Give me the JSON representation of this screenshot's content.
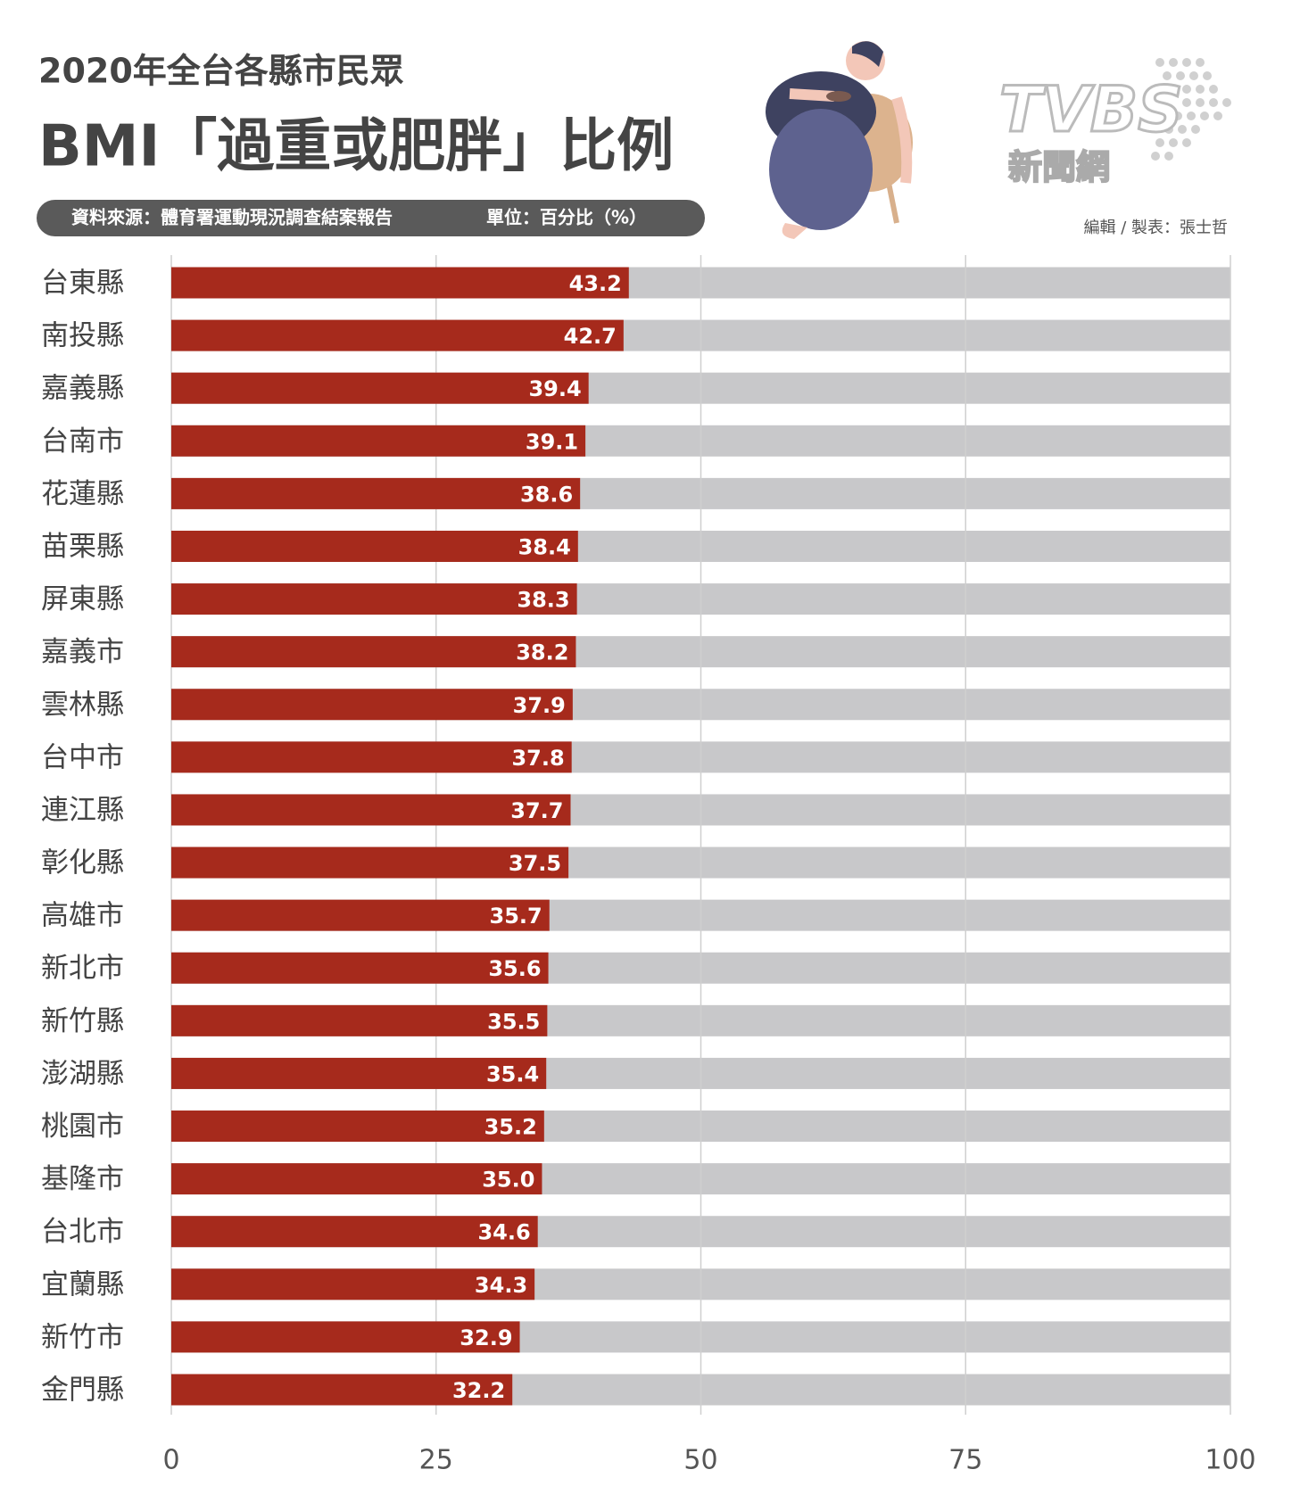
{
  "chart_data": {
    "type": "bar",
    "orientation": "horizontal",
    "title": "2020年全台各縣市民眾",
    "subtitle": "BMI「過重或肥胖」比例",
    "source": "資料來源：體育署運動現況調查結案報告",
    "unit": "單位：百分比（%）",
    "credit": "編輯 / 製表：張士哲",
    "logo": {
      "brand": "TVBS",
      "sub": "新聞網"
    },
    "categories": [
      "台東縣",
      "南投縣",
      "嘉義縣",
      "台南市",
      "花蓮縣",
      "苗栗縣",
      "屏東縣",
      "嘉義市",
      "雲林縣",
      "台中市",
      "連江縣",
      "彰化縣",
      "高雄市",
      "新北市",
      "新竹縣",
      "澎湖縣",
      "桃園市",
      "基隆市",
      "台北市",
      "宜蘭縣",
      "新竹市",
      "金門縣"
    ],
    "values": [
      43.2,
      42.7,
      39.4,
      39.1,
      38.6,
      38.4,
      38.3,
      38.2,
      37.9,
      37.8,
      37.7,
      37.5,
      35.7,
      35.6,
      35.5,
      35.4,
      35.2,
      35.0,
      34.6,
      34.3,
      32.9,
      32.2
    ],
    "value_labels": [
      "43.2",
      "42.7",
      "39.4",
      "39.1",
      "38.6",
      "38.4",
      "38.3",
      "38.2",
      "37.9",
      "37.8",
      "37.7",
      "37.5",
      "35.7",
      "35.6",
      "35.5",
      "35.4",
      "35.2",
      "35.0",
      "34.6",
      "34.3",
      "32.9",
      "32.2"
    ],
    "color": "#a62a1c",
    "track_color": "#c8c8ca",
    "xlim": [
      0,
      100
    ],
    "xticks": [
      0,
      25,
      50,
      75,
      100
    ],
    "grid": true
  }
}
